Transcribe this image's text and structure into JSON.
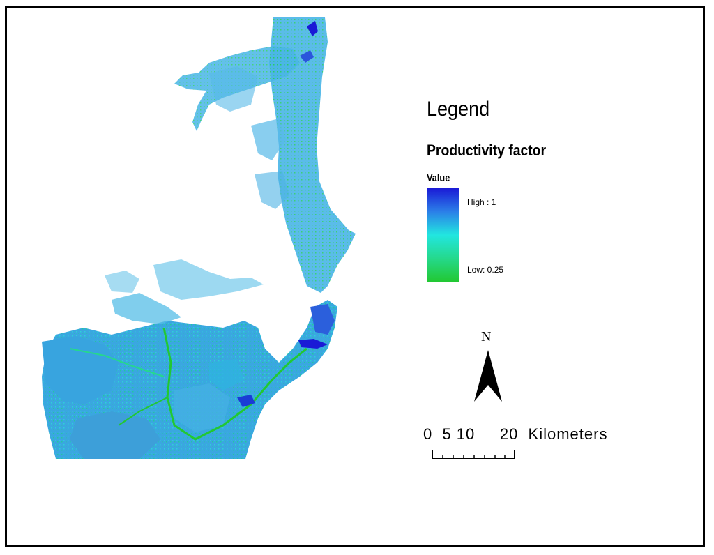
{
  "legend": {
    "title": "Legend",
    "layer_name": "Productivity factor",
    "field": "Value",
    "high_label": "High : 1",
    "low_label": "Low: 0.25",
    "ramp_colors": [
      "#1a1ad6",
      "#2b7fe8",
      "#22e6e0",
      "#25d98c",
      "#22c832"
    ]
  },
  "north_arrow": {
    "label": "N"
  },
  "scale_bar": {
    "label": "0  5 10     20  Kilometers",
    "ticks_km": [
      0,
      5,
      10,
      20
    ],
    "units": "Kilometers"
  },
  "map_colors": {
    "low": "#22c832",
    "mid": "#2fd0d8",
    "main": "#3aa7e0",
    "high": "#1a1ad6"
  }
}
